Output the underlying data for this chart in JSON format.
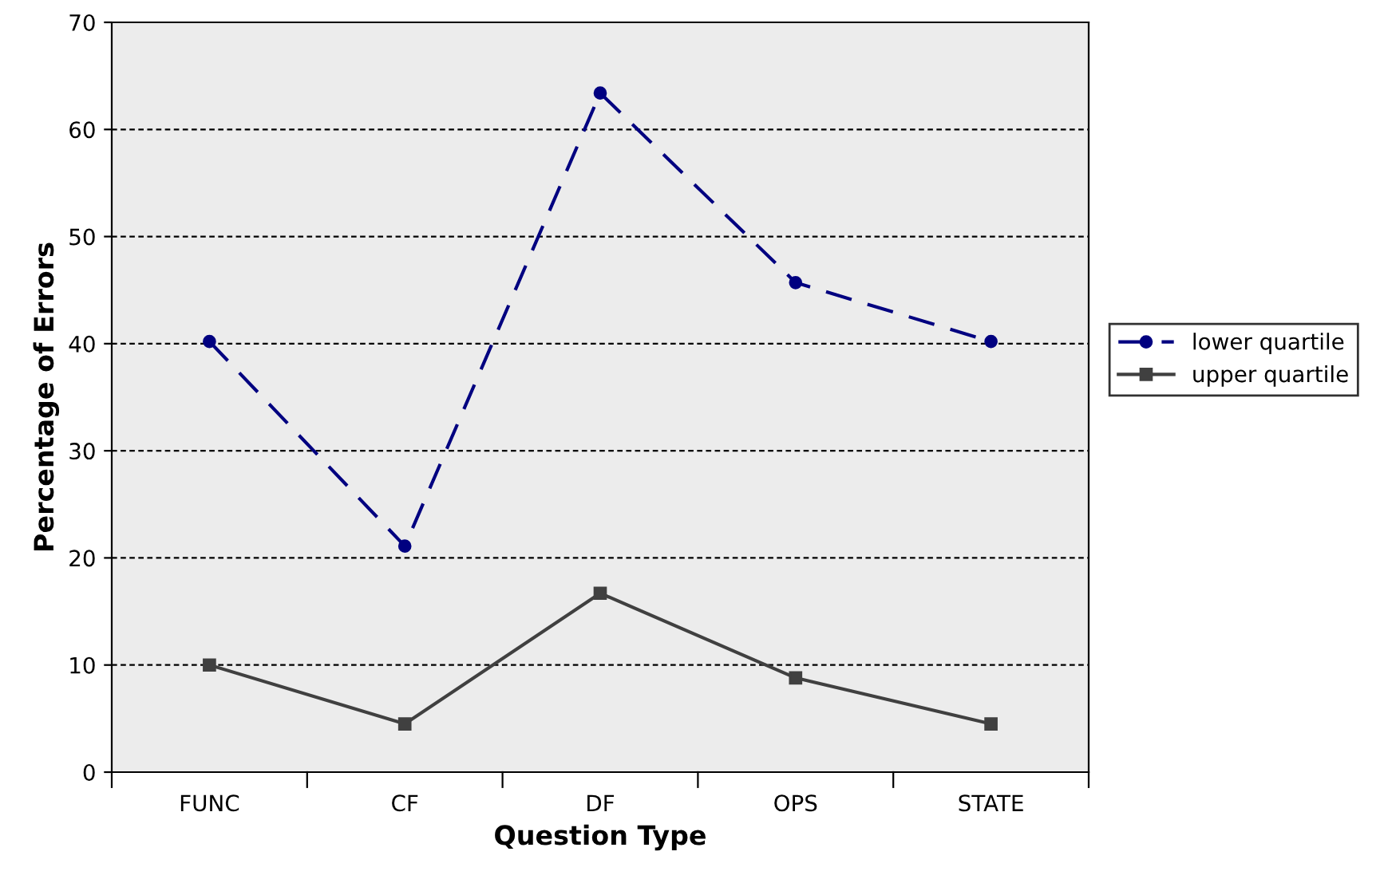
{
  "chart_data": {
    "type": "line",
    "xlabel": "Question Type",
    "ylabel": "Percentage of Errors",
    "categories": [
      "FUNC",
      "CF",
      "DF",
      "OPS",
      "STATE"
    ],
    "series": [
      {
        "name": "lower quartile",
        "color": "#000080",
        "values": [
          40.2,
          21.1,
          63.4,
          45.7,
          40.2
        ],
        "marker": "circle",
        "line_style": "dashed"
      },
      {
        "name": "upper quartile",
        "color": "#404040",
        "values": [
          10,
          4.5,
          16.7,
          8.8,
          4.5
        ],
        "marker": "square",
        "line_style": "solid"
      }
    ],
    "ylim": [
      0,
      70
    ],
    "yticks": [
      0,
      10,
      20,
      30,
      40,
      50,
      60,
      70
    ],
    "grid": "y",
    "legend": "right"
  }
}
